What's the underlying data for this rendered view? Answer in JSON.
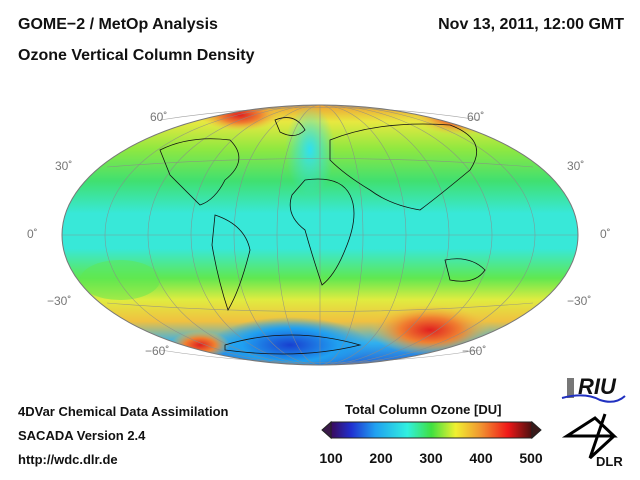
{
  "header": {
    "title": "GOME−2 / MetOp Analysis",
    "subtitle": "Ozone Vertical Column Density",
    "datetime": "Nov 13, 2011, 12:00 GMT"
  },
  "map": {
    "projection": "Hammer / Mollweide world",
    "latitude_labels_left": [
      "60˚",
      "30˚",
      "0˚",
      "−30˚",
      "−60˚"
    ],
    "latitude_labels_right": [
      "60˚",
      "30˚",
      "0˚",
      "−30˚",
      "−60˚"
    ]
  },
  "footer": {
    "line1": "4DVar Chemical Data Assimilation",
    "line2": "SACADA Version 2.4",
    "url": "http://wdc.dlr.de"
  },
  "colorbar": {
    "title": "Total Column Ozone [DU]",
    "ticks": [
      "100",
      "200",
      "300",
      "400",
      "500"
    ],
    "range": [
      100,
      500
    ],
    "colors": [
      "#3a0a5a",
      "#2030d0",
      "#20a0f0",
      "#30f0e0",
      "#40e040",
      "#f0f030",
      "#f09030",
      "#f01818",
      "#4a1010"
    ]
  },
  "logos": {
    "riu": "RIU",
    "dlr": "DLR"
  }
}
